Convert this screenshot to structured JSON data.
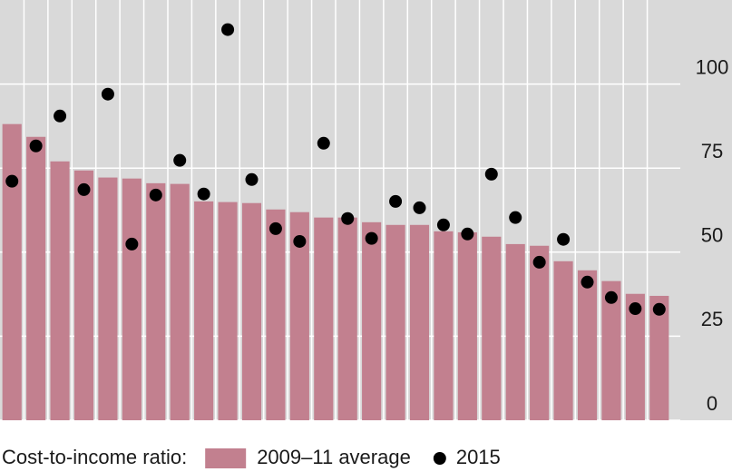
{
  "chart_data": {
    "type": "bar+scatter",
    "legend_title": "Cost-to-income ratio:",
    "categories": [
      null,
      null,
      null,
      null,
      null,
      null,
      null,
      null,
      null,
      null,
      null,
      null,
      null,
      null,
      null,
      null,
      null,
      null,
      null,
      null,
      null,
      null,
      null,
      null,
      null,
      null,
      null,
      null
    ],
    "series": [
      {
        "name": "2009–11 average",
        "type": "bar",
        "color": "#c2808f",
        "values": [
          88.1,
          84.3,
          77.0,
          74.3,
          72.2,
          71.9,
          70.5,
          70.3,
          65.1,
          64.9,
          64.6,
          62.7,
          61.9,
          60.3,
          60.3,
          58.9,
          58.1,
          58.1,
          56.2,
          55.9,
          54.6,
          52.4,
          51.9,
          47.3,
          44.6,
          41.4,
          37.6,
          37.0
        ]
      },
      {
        "name": "2015",
        "type": "scatter",
        "color": "#000000",
        "values": [
          71.1,
          81.6,
          90.5,
          68.6,
          97.0,
          52.4,
          67.0,
          77.3,
          67.3,
          116.2,
          71.6,
          57.0,
          53.2,
          82.4,
          60.0,
          54.1,
          65.1,
          63.2,
          58.1,
          55.4,
          73.2,
          60.3,
          47.0,
          53.8,
          41.1,
          36.5,
          33.2,
          33.0
        ]
      }
    ],
    "ylim": [
      0,
      125
    ],
    "yticks": [
      0,
      25,
      50,
      75,
      100
    ],
    "grid": true,
    "y_axis_side": "right"
  }
}
